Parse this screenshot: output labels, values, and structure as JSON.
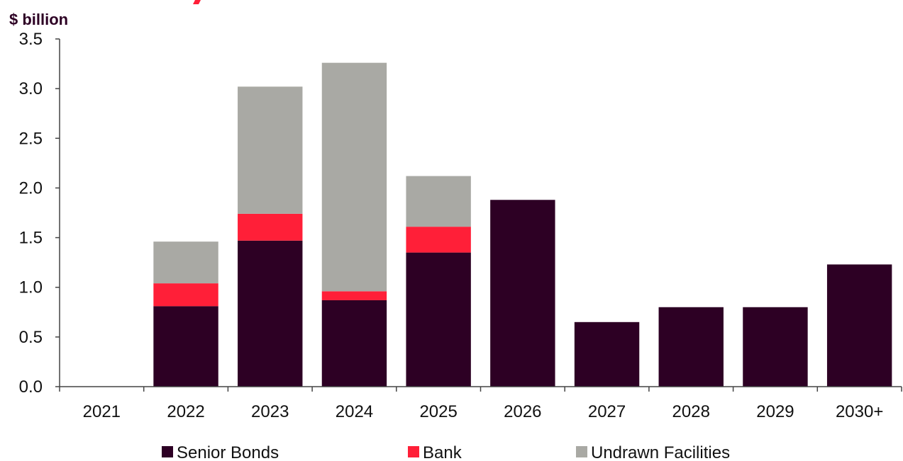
{
  "chart_data": {
    "type": "bar",
    "stacked": true,
    "ylabel": "$ billion",
    "ylim": [
      0,
      3.5
    ],
    "yticks": [
      "0.0",
      "0.5",
      "1.0",
      "1.5",
      "2.0",
      "2.5",
      "3.0",
      "3.5"
    ],
    "categories": [
      "2021",
      "2022",
      "2023",
      "2024",
      "2025",
      "2026",
      "2027",
      "2028",
      "2029",
      "2030+"
    ],
    "series": [
      {
        "name": "Senior Bonds",
        "color": "#2d0024",
        "values": [
          0,
          0.81,
          1.47,
          0.87,
          1.35,
          1.88,
          0.65,
          0.8,
          0.8,
          1.23
        ]
      },
      {
        "name": "Bank",
        "color": "#ff1f38",
        "values": [
          0,
          0.23,
          0.27,
          0.09,
          0.26,
          0,
          0,
          0,
          0,
          0
        ]
      },
      {
        "name": "Undrawn Facilities",
        "color": "#a9a9a4",
        "values": [
          0,
          0.42,
          1.28,
          2.3,
          0.51,
          0,
          0,
          0,
          0,
          0
        ]
      }
    ],
    "legend_position": "bottom",
    "grid": false
  }
}
